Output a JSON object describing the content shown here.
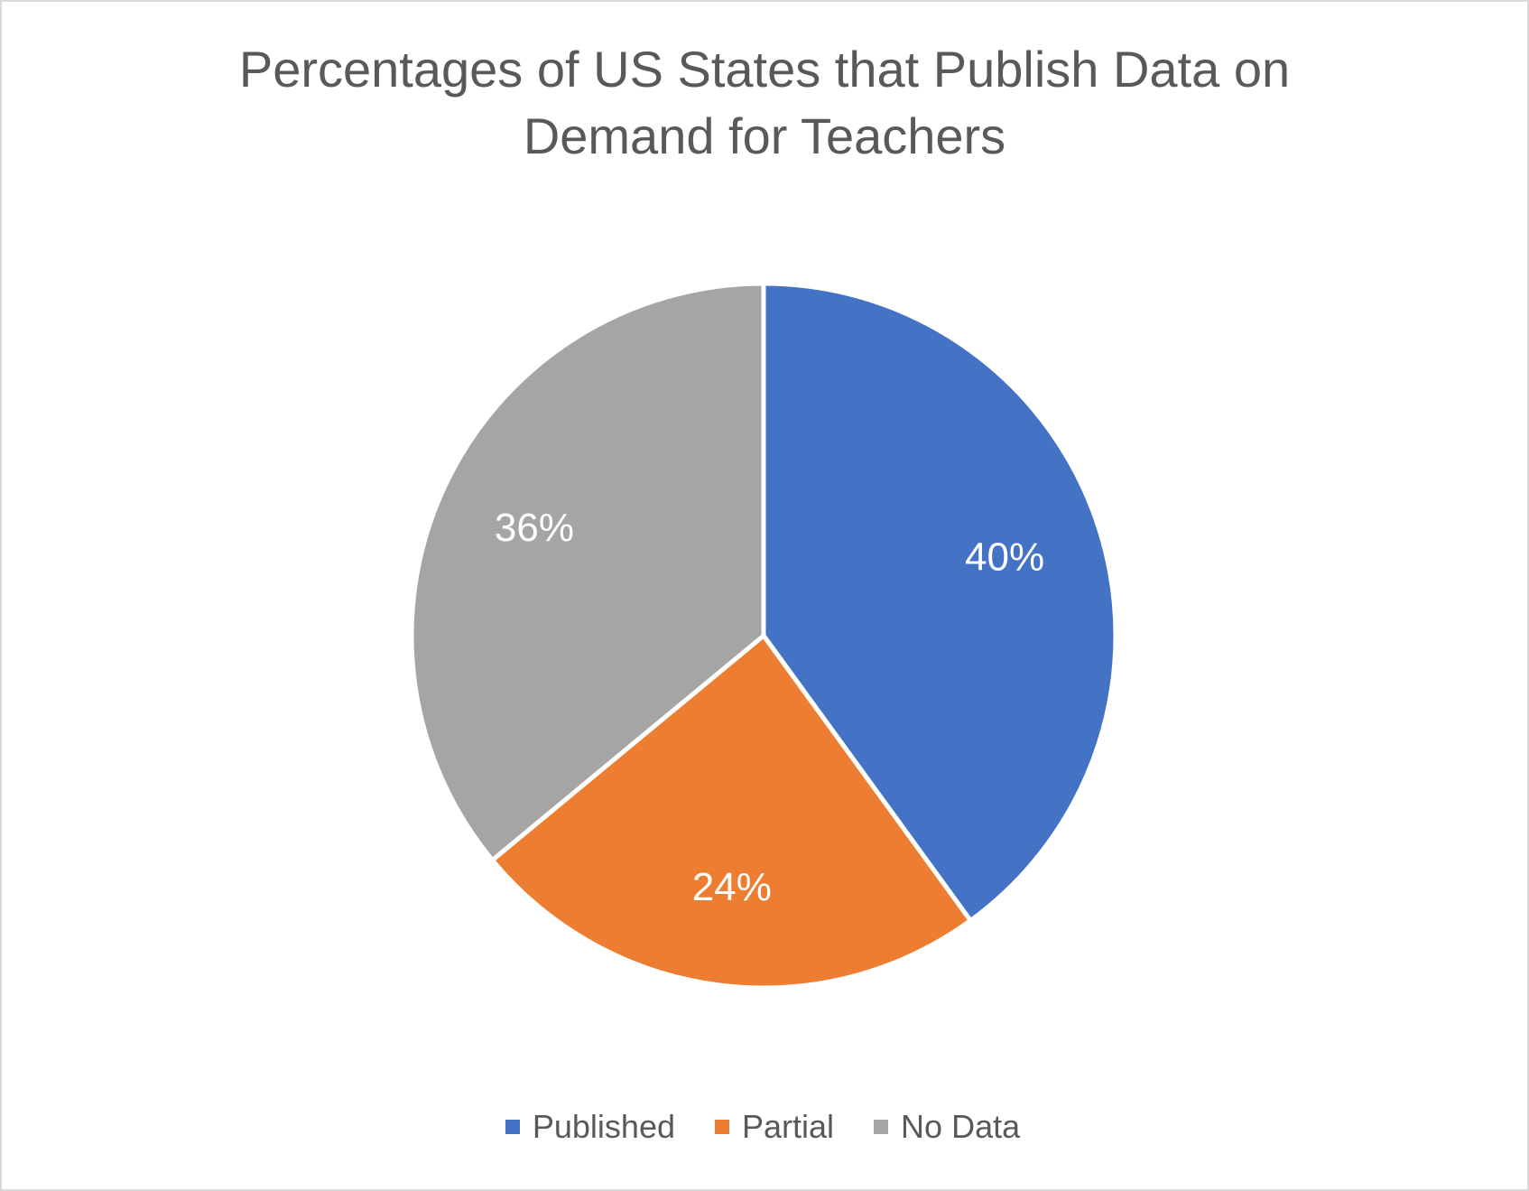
{
  "chart_data": {
    "type": "pie",
    "title_lines": [
      "Percentages of US States that Publish Data on",
      "Demand for Teachers"
    ],
    "categories": [
      "Published",
      "Partial",
      "No Data"
    ],
    "values": [
      40,
      24,
      36
    ],
    "data_labels": [
      "40%",
      "24%",
      "36%"
    ],
    "colors": [
      "#4472c4",
      "#ed7d31",
      "#a5a5a5"
    ],
    "legend_position": "bottom",
    "start_angle_deg": 0,
    "direction": "clockwise"
  },
  "legend": {
    "items": [
      {
        "label": "Published",
        "color": "#4472c4"
      },
      {
        "label": "Partial",
        "color": "#ed7d31"
      },
      {
        "label": "No Data",
        "color": "#a5a5a5"
      }
    ]
  }
}
